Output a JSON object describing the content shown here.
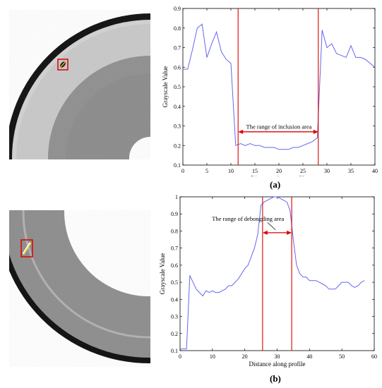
{
  "panels": [
    {
      "label": "(a)"
    },
    {
      "label": "(b)"
    }
  ],
  "colors": {
    "series": "#6666ee",
    "marker": "#dd0000",
    "ring_dark": "#0a0a0a",
    "ring_light": "#cfcfcf",
    "gray_region": "#8e8e8e"
  },
  "chart_data": [
    {
      "type": "line",
      "xlabel": "Distance along profile",
      "ylabel": "Grayscale Value",
      "xlim": [
        0,
        40
      ],
      "ylim": [
        0.1,
        0.9
      ],
      "xticks": [
        "0",
        "5",
        "10",
        "15",
        "20",
        "25",
        "30",
        "35",
        "40"
      ],
      "yticks": [
        "0.1",
        "0.2",
        "0.3",
        "0.4",
        "0.5",
        "0.6",
        "0.7",
        "0.8",
        "0.9"
      ],
      "x": [
        0,
        1,
        2,
        3,
        4,
        5,
        6,
        7,
        8,
        9,
        10,
        11,
        12,
        13,
        14,
        15,
        16,
        17,
        18,
        19,
        20,
        21,
        22,
        23,
        24,
        25,
        26,
        27,
        28,
        29,
        30,
        31,
        32,
        33,
        34,
        35,
        36,
        37,
        38,
        39,
        40
      ],
      "values": [
        0.59,
        0.59,
        0.69,
        0.8,
        0.82,
        0.65,
        0.72,
        0.78,
        0.68,
        0.64,
        0.62,
        0.2,
        0.21,
        0.2,
        0.21,
        0.2,
        0.2,
        0.19,
        0.19,
        0.19,
        0.18,
        0.18,
        0.18,
        0.19,
        0.19,
        0.2,
        0.21,
        0.22,
        0.24,
        0.79,
        0.7,
        0.72,
        0.67,
        0.66,
        0.65,
        0.71,
        0.65,
        0.65,
        0.64,
        0.62,
        0.6
      ],
      "vlines": [
        11.5,
        28.2
      ],
      "annotation": {
        "text": "The range of  inclusion area",
        "x": 20,
        "y": 0.285,
        "arrow_from": 11.5,
        "arrow_to": 28.2,
        "arrow_y": 0.27
      }
    },
    {
      "type": "line",
      "xlabel": "Distance along profile",
      "ylabel": "Grayscale Value",
      "xlim": [
        0,
        60
      ],
      "ylim": [
        0.1,
        1.0
      ],
      "xticks": [
        "0",
        "10",
        "20",
        "30",
        "40",
        "50",
        "60"
      ],
      "yticks": [
        "0.1",
        "0.2",
        "0.3",
        "0.4",
        "0.5",
        "0.6",
        "0.7",
        "0.8",
        "0.9",
        "1"
      ],
      "x": [
        0,
        1,
        2,
        3,
        4,
        5,
        6,
        7,
        8,
        9,
        10,
        11,
        12,
        13,
        14,
        15,
        16,
        17,
        18,
        19,
        20,
        21,
        22,
        23,
        24,
        25,
        26,
        27,
        28,
        29,
        30,
        31,
        32,
        33,
        34,
        35,
        36,
        37,
        38,
        39,
        40,
        41,
        42,
        43,
        44,
        45,
        46,
        47,
        48,
        49,
        50,
        51,
        52,
        53,
        54,
        55,
        56,
        57
      ],
      "values": [
        0.11,
        0.11,
        0.11,
        0.54,
        0.5,
        0.46,
        0.44,
        0.42,
        0.45,
        0.44,
        0.45,
        0.44,
        0.44,
        0.45,
        0.46,
        0.48,
        0.48,
        0.5,
        0.52,
        0.55,
        0.58,
        0.6,
        0.65,
        0.7,
        0.78,
        0.95,
        0.97,
        0.98,
        0.99,
        1.0,
        1.0,
        0.99,
        0.98,
        0.97,
        0.92,
        0.75,
        0.6,
        0.55,
        0.53,
        0.53,
        0.51,
        0.51,
        0.51,
        0.5,
        0.49,
        0.48,
        0.46,
        0.46,
        0.46,
        0.48,
        0.5,
        0.5,
        0.5,
        0.48,
        0.47,
        0.48,
        0.5,
        0.51
      ],
      "vlines": [
        25.5,
        34.5
      ],
      "annotation": {
        "text": "The range of  debongding area",
        "x": 21,
        "y": 0.86,
        "arrow_from": 25.5,
        "arrow_to": 34.5,
        "arrow_y": 0.79,
        "pointer_from_x": 27,
        "pointer_from_y": 0.85
      }
    }
  ]
}
